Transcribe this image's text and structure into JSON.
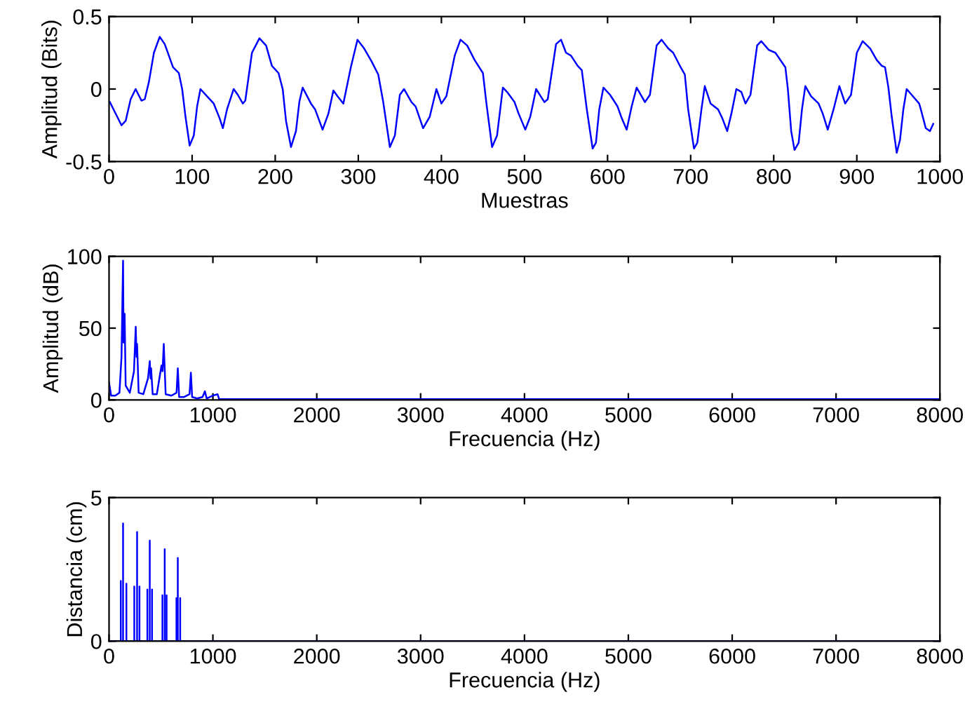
{
  "chart_data": [
    {
      "type": "line",
      "xlabel": "Muestras",
      "ylabel": "Amplitud (Bits)",
      "xlim": [
        0,
        1000
      ],
      "ylim": [
        -0.5,
        0.5
      ],
      "xticks": [
        0,
        100,
        200,
        300,
        400,
        500,
        600,
        700,
        800,
        900,
        1000
      ],
      "yticks": [
        -0.5,
        0,
        0.5
      ],
      "grid": false,
      "legend": false,
      "series": [
        {
          "color": "#0000ff",
          "x": [
            1,
            15,
            20,
            26,
            32,
            39,
            43,
            48,
            54,
            61,
            67,
            77,
            84,
            88,
            92,
            97,
            102,
            106,
            110,
            118,
            126,
            133,
            137,
            142,
            150,
            155,
            161,
            164,
            172,
            181,
            189,
            196,
            204,
            209,
            213,
            219,
            225,
            229,
            233,
            243,
            248,
            257,
            264,
            270,
            275,
            282,
            291,
            299,
            307,
            316,
            324,
            330,
            338,
            344,
            350,
            355,
            364,
            369,
            378,
            386,
            394,
            400,
            406,
            416,
            423,
            431,
            440,
            450,
            454,
            461,
            467,
            474,
            479,
            488,
            493,
            501,
            507,
            514,
            524,
            528,
            538,
            544,
            550,
            556,
            564,
            569,
            575,
            582,
            586,
            590,
            595,
            603,
            612,
            617,
            623,
            629,
            635,
            641,
            645,
            651,
            659,
            665,
            673,
            679,
            688,
            693,
            697,
            704,
            708,
            713,
            717,
            724,
            733,
            738,
            744,
            749,
            755,
            761,
            766,
            772,
            780,
            785,
            794,
            802,
            814,
            817,
            821,
            825,
            830,
            834,
            838,
            845,
            854,
            859,
            865,
            872,
            879,
            886,
            893,
            900,
            907,
            916,
            924,
            930,
            934,
            938,
            942,
            948,
            952,
            956,
            960,
            966,
            975,
            977,
            983,
            988,
            992
          ],
          "values": [
            -0.09,
            -0.25,
            -0.22,
            -0.07,
            0.0,
            -0.08,
            -0.07,
            0.05,
            0.25,
            0.36,
            0.31,
            0.15,
            0.11,
            0.0,
            -0.19,
            -0.39,
            -0.32,
            -0.12,
            0.0,
            -0.05,
            -0.1,
            -0.2,
            -0.27,
            -0.14,
            0.0,
            -0.04,
            -0.1,
            -0.08,
            0.25,
            0.35,
            0.3,
            0.16,
            0.11,
            0.0,
            -0.22,
            -0.4,
            -0.29,
            -0.09,
            0.01,
            -0.1,
            -0.14,
            -0.28,
            -0.17,
            -0.01,
            -0.05,
            -0.1,
            0.15,
            0.34,
            0.28,
            0.19,
            0.1,
            -0.09,
            -0.4,
            -0.32,
            -0.04,
            0.0,
            -0.09,
            -0.12,
            -0.27,
            -0.19,
            0.0,
            -0.1,
            -0.05,
            0.23,
            0.34,
            0.3,
            0.2,
            0.11,
            -0.09,
            -0.4,
            -0.32,
            0.01,
            -0.02,
            -0.09,
            -0.17,
            -0.28,
            -0.19,
            0.0,
            -0.09,
            -0.07,
            0.31,
            0.34,
            0.25,
            0.23,
            0.16,
            0.13,
            -0.14,
            -0.41,
            -0.37,
            -0.14,
            0.01,
            -0.04,
            -0.12,
            -0.2,
            -0.28,
            -0.12,
            0.01,
            -0.05,
            -0.09,
            -0.04,
            0.3,
            0.34,
            0.28,
            0.25,
            0.15,
            0.1,
            -0.14,
            -0.41,
            -0.37,
            -0.14,
            0.02,
            -0.1,
            -0.14,
            -0.2,
            -0.29,
            -0.17,
            0.0,
            -0.02,
            -0.1,
            -0.04,
            0.3,
            0.33,
            0.27,
            0.25,
            0.15,
            0.0,
            -0.29,
            -0.42,
            -0.37,
            -0.14,
            0.02,
            -0.05,
            -0.1,
            -0.17,
            -0.28,
            -0.14,
            0.02,
            -0.1,
            -0.04,
            0.25,
            0.33,
            0.28,
            0.2,
            0.16,
            0.15,
            0.01,
            -0.19,
            -0.44,
            -0.35,
            -0.14,
            0.0,
            -0.04,
            -0.1,
            -0.14,
            -0.27,
            -0.29,
            -0.24
          ]
        }
      ]
    },
    {
      "type": "line",
      "xlabel": "Frecuencia (Hz)",
      "ylabel": "Amplitud (dB)",
      "xlim": [
        0,
        8000
      ],
      "ylim": [
        0,
        100
      ],
      "xticks": [
        0,
        1000,
        2000,
        3000,
        4000,
        5000,
        6000,
        7000,
        8000
      ],
      "yticks": [
        0,
        50,
        100
      ],
      "grid": false,
      "legend": false,
      "series": [
        {
          "color": "#0000ff",
          "x": [
            0,
            20,
            60,
            100,
            120,
            135,
            140,
            150,
            160,
            200,
            240,
            257,
            265,
            270,
            285,
            330,
            375,
            392,
            400,
            405,
            420,
            460,
            505,
            515,
            527,
            545,
            600,
            650,
            662,
            675,
            720,
            775,
            788,
            800,
            850,
            900,
            923,
            940,
            1000,
            1045,
            1060,
            1200,
            8000
          ],
          "values": [
            12,
            3,
            3,
            5,
            30,
            97,
            40,
            60,
            10,
            5,
            20,
            51,
            30,
            39,
            5,
            4,
            15,
            27,
            15,
            22,
            4,
            4,
            24,
            20,
            39,
            4,
            3,
            5,
            22,
            2,
            2,
            4,
            19,
            2,
            1,
            2,
            6,
            1,
            3,
            4,
            0.5,
            0.5,
            0.5
          ]
        }
      ]
    },
    {
      "type": "line",
      "xlabel": "Frecuencia (Hz)",
      "ylabel": "Distancia (cm)",
      "xlim": [
        0,
        8000
      ],
      "ylim": [
        0,
        5
      ],
      "xticks": [
        0,
        1000,
        2000,
        3000,
        4000,
        5000,
        6000,
        7000,
        8000
      ],
      "yticks": [
        0,
        5
      ],
      "grid": false,
      "legend": false,
      "series": [
        {
          "color": "#0000ff",
          "x": [
            0,
            113,
            113,
            113,
            135,
            135,
            135,
            167,
            167,
            167,
            243,
            243,
            243,
            270,
            270,
            270,
            293,
            293,
            293,
            369,
            369,
            369,
            392,
            392,
            392,
            414,
            414,
            414,
            514,
            514,
            514,
            536,
            536,
            536,
            554,
            554,
            554,
            649,
            649,
            649,
            662,
            662,
            662,
            685,
            685,
            685,
            8000
          ],
          "values": [
            0,
            0,
            2.1,
            0,
            0,
            4.1,
            0,
            0,
            2.0,
            0,
            0,
            1.9,
            0,
            0,
            3.8,
            0,
            0,
            1.9,
            0,
            0,
            1.8,
            0,
            0,
            3.5,
            0,
            0,
            1.8,
            0,
            0,
            1.6,
            0,
            0,
            3.2,
            0,
            0,
            1.6,
            0,
            0,
            1.5,
            0,
            0,
            2.9,
            0,
            0,
            1.5,
            0,
            0
          ]
        }
      ]
    }
  ]
}
